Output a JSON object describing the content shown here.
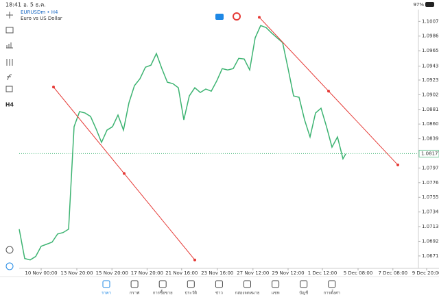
{
  "status_bar": {
    "time": "18:41",
    "date": "อ. 5 ธ.ค.",
    "battery": "97%"
  },
  "symbol": {
    "name": "EURUSDm • H4",
    "description": "Euro vs US Dollar"
  },
  "toolbar": {
    "timeframe": "H4"
  },
  "chart_data": {
    "type": "line",
    "x": [
      0,
      1,
      2,
      3,
      4,
      5,
      6,
      7,
      8,
      9,
      10,
      11,
      12,
      13,
      14,
      15,
      16,
      17,
      18,
      19,
      20,
      21,
      22,
      23,
      24,
      25,
      26,
      27,
      28,
      29,
      30,
      31,
      32,
      33,
      34,
      35,
      36,
      37,
      38,
      39,
      40,
      41,
      42,
      43,
      44,
      45,
      46,
      47,
      48,
      49,
      50,
      51,
      52,
      53,
      54,
      55,
      56,
      57,
      58,
      59,
      59.5
    ],
    "series": [
      {
        "color": "#3cb371",
        "values": [
          1.07094,
          1.06673,
          1.06653,
          1.06702,
          1.06849,
          1.06878,
          1.06908,
          1.07025,
          1.07045,
          1.07094,
          1.08562,
          1.08778,
          1.08758,
          1.08709,
          1.08533,
          1.08337,
          1.08513,
          1.08562,
          1.08729,
          1.08513,
          1.08905,
          1.0915,
          1.09248,
          1.09414,
          1.09443,
          1.0961,
          1.09394,
          1.09199,
          1.09179,
          1.0912,
          1.0866,
          1.09003,
          1.0912,
          1.09052,
          1.09101,
          1.09071,
          1.09218,
          1.09394,
          1.09375,
          1.09394,
          1.09541,
          1.09532,
          1.09375,
          1.09835,
          1.10011,
          1.09982,
          1.09904,
          1.09835,
          1.09767,
          1.09394,
          1.09003,
          1.08983,
          1.0866,
          1.08415,
          1.08758,
          1.08827,
          1.08562,
          1.08269,
          1.08415,
          1.08102,
          1.08171
        ]
      }
    ],
    "xlim": [
      0,
      72.75
    ],
    "ylim": [
      1.0665,
      1.1023
    ],
    "yticks": [
      {
        "value": 1.1007,
        "label": "1.10070"
      },
      {
        "value": 1.0986,
        "label": "1.09860"
      },
      {
        "value": 1.0965,
        "label": "1.09650"
      },
      {
        "value": 1.0943,
        "label": "1.09430"
      },
      {
        "value": 1.0923,
        "label": "1.09230"
      },
      {
        "value": 1.0902,
        "label": "1.09020"
      },
      {
        "value": 1.0881,
        "label": "1.08810"
      },
      {
        "value": 1.086,
        "label": "1.08600"
      },
      {
        "value": 1.0839,
        "label": "1.08390"
      },
      {
        "value": 1.0797,
        "label": "1.07970"
      },
      {
        "value": 1.0776,
        "label": "1.07760"
      },
      {
        "value": 1.0755,
        "label": "1.07550"
      },
      {
        "value": 1.0734,
        "label": "1.07340"
      },
      {
        "value": 1.0713,
        "label": "1.07130"
      },
      {
        "value": 1.0692,
        "label": "1.06920"
      },
      {
        "value": 1.0671,
        "label": "1.06710"
      }
    ],
    "xticks": [
      {
        "value": 4,
        "label": "10 Nov 00:00"
      },
      {
        "value": 10.5,
        "label": "13 Nov 20:00"
      },
      {
        "value": 16.9,
        "label": "15 Nov 20:00"
      },
      {
        "value": 23.3,
        "label": "17 Nov 20:00"
      },
      {
        "value": 29.6,
        "label": "21 Nov 16:00"
      },
      {
        "value": 36.1,
        "label": "23 Nov 16:00"
      },
      {
        "value": 42.6,
        "label": "27 Nov 12:00"
      },
      {
        "value": 49,
        "label": "29 Nov 12:00"
      },
      {
        "value": 55.25,
        "label": "1 Dec 12:00"
      },
      {
        "value": 61.75,
        "label": "5 Dec 08:00"
      },
      {
        "value": 68.1,
        "label": "7 Dec 08:00"
      },
      {
        "value": 74.25,
        "label": "9 Dec 20:00"
      }
    ],
    "current_price": {
      "value": 1.08177,
      "label": "1.08177"
    },
    "trend_lines": [
      {
        "color": "#e53935",
        "x": [
          6.25,
          32
        ],
        "y": [
          1.0913,
          1.06653
        ]
      },
      {
        "color": "#e53935",
        "x": [
          43.75,
          69
        ],
        "y": [
          1.10129,
          1.08014
        ]
      }
    ],
    "grid": false
  },
  "tab_bar": {
    "tabs": [
      "ราคา",
      "กราฟ",
      "การซื้อขาย",
      "ประวัติ",
      "ข่าว",
      "กล่องจดหมาย",
      "แชท",
      "บัญชี",
      "การตั้งค่า"
    ]
  }
}
